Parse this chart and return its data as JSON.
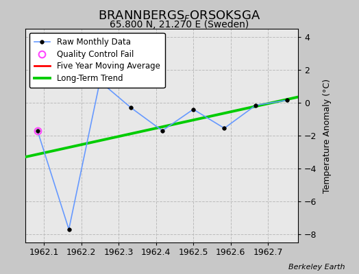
{
  "title": "BRANNBERGS$_F$ORSOKSGA",
  "subtitle": "65.800 N, 21.270 E (Sweden)",
  "ylabel": "Temperature Anomaly (°C)",
  "credit": "Berkeley Earth",
  "xlim": [
    1962.05,
    1962.78
  ],
  "ylim": [
    -8.5,
    4.5
  ],
  "yticks": [
    -8,
    -6,
    -4,
    -2,
    0,
    2,
    4
  ],
  "xticks": [
    1962.1,
    1962.2,
    1962.3,
    1962.4,
    1962.5,
    1962.6,
    1962.7
  ],
  "raw_x": [
    1962.083,
    1962.167,
    1962.25,
    1962.333,
    1962.417,
    1962.5,
    1962.583,
    1962.667,
    1962.75
  ],
  "raw_y": [
    -1.7,
    -7.7,
    1.3,
    -0.3,
    -1.7,
    -0.4,
    -1.55,
    -0.15,
    0.15
  ],
  "qc_fail_x": [
    1962.083
  ],
  "qc_fail_y": [
    -1.7
  ],
  "trend_x": [
    1962.05,
    1962.78
  ],
  "trend_y": [
    -3.3,
    0.35
  ],
  "raw_line_color": "#6699ff",
  "raw_dot_color": "#000000",
  "qc_color": "#ff44ff",
  "trend_color": "#00cc00",
  "moving_avg_color": "#ff0000",
  "figure_background": "#c8c8c8",
  "plot_background": "#e8e8e8",
  "grid_color": "#bbbbbb",
  "title_fontsize": 13,
  "subtitle_fontsize": 10,
  "legend_fontsize": 8.5,
  "tick_fontsize": 9
}
